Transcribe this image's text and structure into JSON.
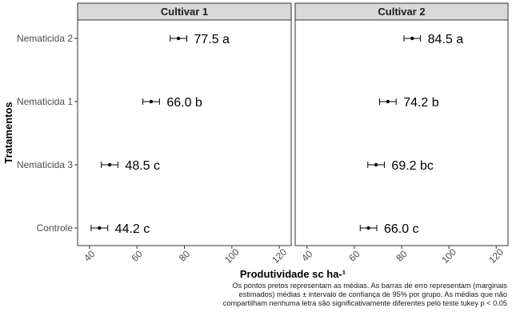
{
  "chart_data": {
    "type": "scatter",
    "xlabel": "Produtividade sc ha-¹",
    "ylabel": "Tratamentos",
    "xlim": [
      35,
      125
    ],
    "x_ticks": [
      40,
      60,
      80,
      100,
      120
    ],
    "categories": [
      "Nematicida 2",
      "Nematicida 1",
      "Nematicida 3",
      "Controle"
    ],
    "facets": [
      {
        "name": "Cultivar 1",
        "points": [
          {
            "category": "Nematicida 2",
            "mean": 77.5,
            "lower": 74.0,
            "upper": 81.0,
            "label": "77.5 a"
          },
          {
            "category": "Nematicida 1",
            "mean": 66.0,
            "lower": 62.5,
            "upper": 69.5,
            "label": "66.0 b"
          },
          {
            "category": "Nematicida 3",
            "mean": 48.5,
            "lower": 45.0,
            "upper": 52.0,
            "label": "48.5 c"
          },
          {
            "category": "Controle",
            "mean": 44.2,
            "lower": 40.7,
            "upper": 47.7,
            "label": "44.2 c"
          }
        ]
      },
      {
        "name": "Cultivar 2",
        "points": [
          {
            "category": "Nematicida 2",
            "mean": 84.5,
            "lower": 81.0,
            "upper": 88.0,
            "label": "84.5 a"
          },
          {
            "category": "Nematicida 1",
            "mean": 74.2,
            "lower": 70.7,
            "upper": 77.7,
            "label": "74.2 b"
          },
          {
            "category": "Nematicida 3",
            "mean": 69.2,
            "lower": 65.7,
            "upper": 72.7,
            "label": "69.2 bc"
          },
          {
            "category": "Controle",
            "mean": 66.0,
            "lower": 62.5,
            "upper": 69.5,
            "label": "66.0 c"
          }
        ]
      }
    ],
    "caption": "Os pontos pretos representam as médias. As barras de erro representam (marginais estimados) médias ± intervalo de confiança de 95% por grupo. As médias que não compartilham nenhuma letra são significativamente diferentes pelo teste tukey p < 0.05",
    "colors": {
      "strip_bg": "#d9d9d9",
      "panel_border": "#333333",
      "points": "#000000"
    }
  }
}
